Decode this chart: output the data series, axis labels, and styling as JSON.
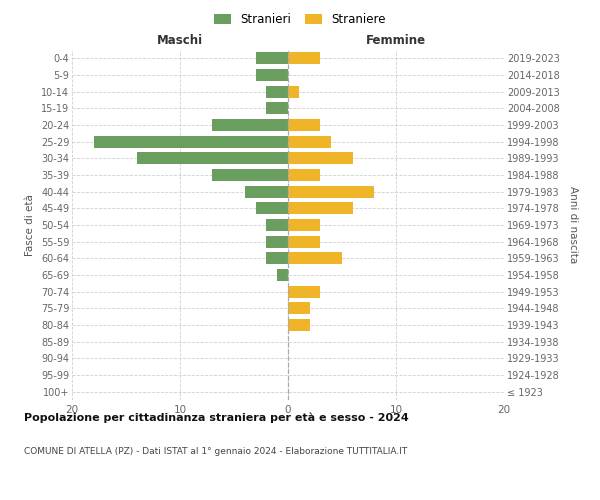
{
  "age_groups": [
    "100+",
    "95-99",
    "90-94",
    "85-89",
    "80-84",
    "75-79",
    "70-74",
    "65-69",
    "60-64",
    "55-59",
    "50-54",
    "45-49",
    "40-44",
    "35-39",
    "30-34",
    "25-29",
    "20-24",
    "15-19",
    "10-14",
    "5-9",
    "0-4"
  ],
  "birth_years": [
    "≤ 1923",
    "1924-1928",
    "1929-1933",
    "1934-1938",
    "1939-1943",
    "1944-1948",
    "1949-1953",
    "1954-1958",
    "1959-1963",
    "1964-1968",
    "1969-1973",
    "1974-1978",
    "1979-1983",
    "1984-1988",
    "1989-1993",
    "1994-1998",
    "1999-2003",
    "2004-2008",
    "2009-2013",
    "2014-2018",
    "2019-2023"
  ],
  "males": [
    0,
    0,
    0,
    0,
    0,
    0,
    0,
    1,
    2,
    2,
    2,
    3,
    4,
    7,
    14,
    18,
    7,
    2,
    2,
    3,
    3
  ],
  "females": [
    0,
    0,
    0,
    0,
    2,
    2,
    3,
    0,
    5,
    3,
    3,
    6,
    8,
    3,
    6,
    4,
    3,
    0,
    1,
    0,
    3
  ],
  "male_color": "#6a9e5e",
  "female_color": "#f0b429",
  "title_main": "Popolazione per cittadinanza straniera per età e sesso - 2024",
  "subtitle": "COMUNE DI ATELLA (PZ) - Dati ISTAT al 1° gennaio 2024 - Elaborazione TUTTITALIA.IT",
  "legend_male": "Stranieri",
  "legend_female": "Straniere",
  "label_maschi": "Maschi",
  "label_femmine": "Femmine",
  "ylabel_left": "Fasce di età",
  "ylabel_right": "Anni di nascita",
  "xlim": 20,
  "background_color": "#ffffff",
  "grid_color": "#d0d0d0",
  "bar_height": 0.72
}
